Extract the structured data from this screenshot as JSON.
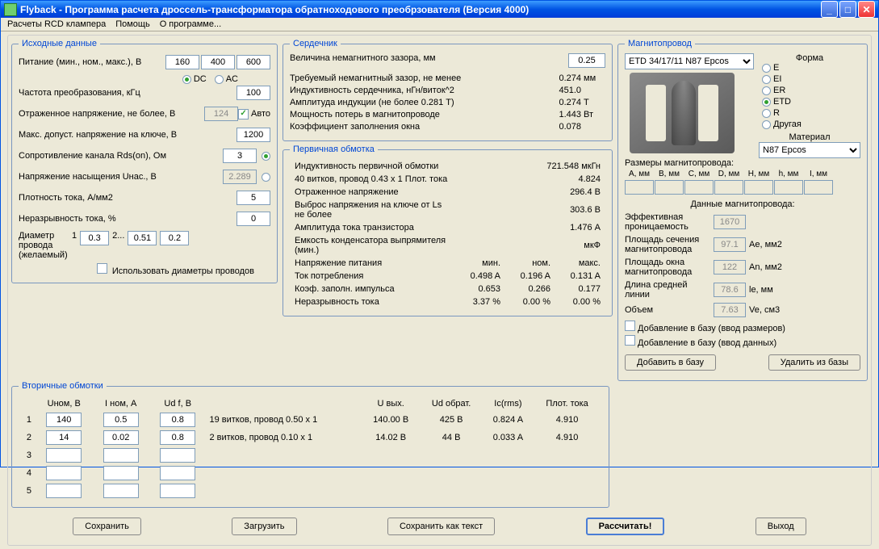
{
  "window": {
    "title": "Flyback - Программа расчета дроссель-трансформатора обратноходового преобрзователя (Версия 4000)"
  },
  "menus": {
    "rcd": "Расчеты RCD клампера",
    "help": "Помощь",
    "about": "О программе..."
  },
  "inputs_group": {
    "legend": "Исходные данные",
    "supply_label": "Питание (мин., ном., макс.), В",
    "supply": {
      "min": "160",
      "nom": "400",
      "max": "600"
    },
    "dc_label": "DC",
    "ac_label": "AC",
    "mode": "DC",
    "freq_label": "Частота преобразования, кГц",
    "freq": "100",
    "vreflect_label": "Отраженное напряжение, не более, В",
    "vreflect": "124",
    "auto_label": "Авто",
    "vds_label": "Макс. допуст. напряжение на ключе, В",
    "vds": "1200",
    "rds_label": "Сопротивление канала Rds(on), Ом",
    "rds": "3",
    "usat_label": "Напряжение насыщения Uнас., В",
    "usat": "2.289",
    "jdens_label": "Плотность тока, А/мм2",
    "jdens": "5",
    "ripple_label": "Неразрывность тока, %",
    "ripple": "0",
    "wire_label1": "Диаметр",
    "wire_idx1": "1",
    "wire_d1": "0.3",
    "wire_label2": "2...",
    "wire_d2a": "0.51",
    "wire_d2b": "0.2",
    "wire_label3": "провода",
    "wire_label4": "(желаемый)",
    "use_wires_label": "Использовать диаметры проводов"
  },
  "core_group": {
    "legend": "Сердечник",
    "gap_label": "Величина немагнитного зазора, мм",
    "gap": "0.25",
    "req_gap_label": "Требуемый немагнитный зазор, не менее",
    "req_gap_v": "0.274",
    "req_gap_u": "мм",
    "ind_label": "Индуктивность сердечника, нГн/виток^2",
    "ind_v": "451.0",
    "bamp_label": "Амплитуда индукции    (не более 0.281 T)",
    "bamp_v": "0.274",
    "bamp_u": "T",
    "ploss_label": "Мощность потерь в магнитопроводе",
    "ploss_v": "1.443",
    "ploss_u": "Вт",
    "fill_label": "Коэффициент заполнения окна",
    "fill_v": "0.078"
  },
  "primary": {
    "legend": "Первичная обмотка",
    "ind_label": "Индуктивность первичной обмотки",
    "ind_v": "721.548",
    "ind_u": "мкГн",
    "turns_label": "  40 витков,  провод  0.43 x 1       Плот.  тока",
    "turns_v": "4.824",
    "vref_label": "Отраженное напряжение",
    "vref_v": "296.4",
    "vref_u": "В",
    "spike_label": "Выброс напряжения на ключе от Ls не более",
    "spike_v": "303.6",
    "spike_u": "В",
    "ipk_label": "Амплитуда тока транзистора",
    "ipk_v": "1.476",
    "ipk_u": "А",
    "cap_label": "Емкость конденсатора выпрямителя (мин.)",
    "cap_v": "",
    "cap_u": "мкФ",
    "vsup_label": "Напряжение питания",
    "hdr_min": "мин.",
    "hdr_nom": "ном.",
    "hdr_max": "макс.",
    "iin_label": "Ток потребления",
    "iin_min": "0.498 A",
    "iin_nom": "0.196 A",
    "iin_max": "0.131 A",
    "duty_label": "Коэф. заполн. импульса",
    "duty_min": "0.653",
    "duty_nom": "0.266",
    "duty_max": "0.177",
    "ccm_label": "Неразрывность тока",
    "ccm_min": "3.37 %",
    "ccm_nom": "0.00 %",
    "ccm_max": "0.00 %"
  },
  "secondary": {
    "legend": "Вторичные обмотки",
    "hdr_unom": "Uном, В",
    "hdr_inom": "I ном, A",
    "hdr_udf": "Ud f, В",
    "hdr_uout": "U вых.",
    "hdr_urev": "Ud обрат.",
    "hdr_ic": "Ic(rms)",
    "hdr_jdens": "Плот. тока",
    "rows": [
      {
        "n": "1",
        "u": "140",
        "i": "0.5",
        "ud": "0.8",
        "desc": "19 витков, провод 0.50 x 1",
        "uout": "140.00 В",
        "urev": "425 В",
        "ic": "0.824 A",
        "j": "4.910"
      },
      {
        "n": "2",
        "u": "14",
        "i": "0.02",
        "ud": "0.8",
        "desc": "2 витков, провод 0.10 x 1",
        "uout": "14.02 В",
        "urev": "44 В",
        "ic": "0.033 A",
        "j": "4.910"
      },
      {
        "n": "3",
        "u": "",
        "i": "",
        "ud": "",
        "desc": "",
        "uout": "",
        "urev": "",
        "ic": "",
        "j": ""
      },
      {
        "n": "4",
        "u": "",
        "i": "",
        "ud": "",
        "desc": "",
        "uout": "",
        "urev": "",
        "ic": "",
        "j": ""
      },
      {
        "n": "5",
        "u": "",
        "i": "",
        "ud": "",
        "desc": "",
        "uout": "",
        "urev": "",
        "ic": "",
        "j": ""
      }
    ]
  },
  "mag": {
    "legend": "Магнитопровод",
    "core_select": "ETD 34/17/11 N87 Epcos",
    "shape_label": "Форма",
    "shapes": [
      "E",
      "EI",
      "ER",
      "ETD",
      "R",
      "Другая"
    ],
    "shape_sel": "ETD",
    "material_label": "Материал",
    "material": "N87 Epcos",
    "dims_label": "Размеры магнитопровода:",
    "dims": [
      "A, мм",
      "B, мм",
      "C, мм",
      "D, мм",
      "H, мм",
      "h, мм",
      "I, мм"
    ],
    "data_label": "Данные магнитопровода:",
    "mu_label": "Эффективная проницаемость",
    "mu_v": "1670",
    "ae_label": "Площадь сечения магнитопровода",
    "ae_v": "97.1",
    "ae_u": "Ae, мм2",
    "an_label": "Площадь окна магнитопровода",
    "an_v": "122",
    "an_u": "An, мм2",
    "le_label": "Длина средней линии",
    "le_v": "78.6",
    "le_u": "le, мм",
    "ve_label": "Объем",
    "ve_v": "7.63",
    "ve_u": "Ve, см3",
    "add_dims_label": "Добавление в базу (ввод размеров)",
    "add_data_label": "Добавление в базу (ввод данных)",
    "btn_add": "Добавить в базу",
    "btn_del": "Удалить из базы"
  },
  "buttons": {
    "save": "Сохранить",
    "load": "Загрузить",
    "save_txt": "Сохранить как текст",
    "calc": "Рассчитать!",
    "exit": "Выход"
  }
}
